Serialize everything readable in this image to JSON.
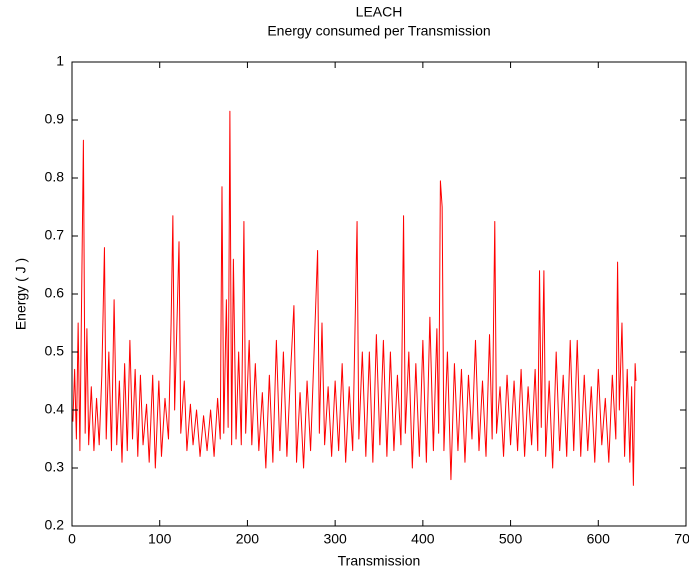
{
  "chart_data": {
    "type": "line",
    "title": "LEACH",
    "subtitle": "Energy consumed per Transmission",
    "xlabel": "Transmission",
    "ylabel": "Energy ( J )",
    "color": "#ff0000",
    "xlim": [
      0,
      700
    ],
    "xticks": [
      0,
      100,
      200,
      300,
      400,
      500,
      600,
      700
    ],
    "ylim": [
      0.2,
      1
    ],
    "yticks": [
      0.2,
      0.3,
      0.4,
      0.5,
      0.6,
      0.7,
      0.8,
      0.9,
      1
    ],
    "grid": false,
    "x": [
      1,
      3,
      5,
      7,
      9,
      11,
      13,
      15,
      17,
      19,
      22,
      25,
      28,
      31,
      34,
      37,
      39,
      42,
      45,
      48,
      51,
      54,
      57,
      60,
      63,
      66,
      69,
      72,
      75,
      78,
      81,
      85,
      88,
      92,
      95,
      99,
      102,
      106,
      110,
      113,
      115,
      117,
      120,
      122,
      124,
      128,
      131,
      135,
      138,
      142,
      146,
      150,
      154,
      158,
      162,
      166,
      169,
      171,
      173,
      176,
      178,
      180,
      182,
      184,
      187,
      190,
      193,
      196,
      198,
      202,
      205,
      209,
      213,
      217,
      221,
      225,
      229,
      233,
      237,
      241,
      245,
      249,
      253,
      256,
      260,
      264,
      268,
      272,
      276,
      280,
      282,
      285,
      288,
      292,
      296,
      300,
      304,
      308,
      312,
      316,
      320,
      325,
      327,
      331,
      335,
      339,
      343,
      347,
      351,
      355,
      359,
      363,
      367,
      371,
      375,
      378,
      380,
      384,
      388,
      392,
      396,
      400,
      404,
      408,
      412,
      416,
      418,
      420,
      422,
      424,
      428,
      432,
      436,
      440,
      444,
      448,
      452,
      456,
      460,
      464,
      468,
      472,
      476,
      479,
      482,
      484,
      488,
      492,
      496,
      500,
      504,
      508,
      512,
      516,
      520,
      524,
      528,
      531,
      533,
      535,
      538,
      540,
      544,
      548,
      552,
      556,
      560,
      564,
      568,
      572,
      576,
      580,
      584,
      588,
      592,
      596,
      600,
      604,
      608,
      612,
      616,
      620,
      622,
      624,
      627,
      630,
      633,
      636,
      638,
      640,
      642,
      643
    ],
    "values": [
      0.38,
      0.47,
      0.35,
      0.55,
      0.33,
      0.6,
      0.865,
      0.36,
      0.54,
      0.34,
      0.44,
      0.33,
      0.42,
      0.34,
      0.46,
      0.68,
      0.35,
      0.5,
      0.33,
      0.59,
      0.34,
      0.45,
      0.31,
      0.48,
      0.33,
      0.52,
      0.35,
      0.47,
      0.32,
      0.46,
      0.34,
      0.41,
      0.31,
      0.46,
      0.3,
      0.45,
      0.32,
      0.42,
      0.35,
      0.55,
      0.735,
      0.4,
      0.57,
      0.69,
      0.36,
      0.45,
      0.33,
      0.41,
      0.34,
      0.4,
      0.32,
      0.39,
      0.33,
      0.4,
      0.32,
      0.42,
      0.35,
      0.785,
      0.36,
      0.59,
      0.37,
      0.915,
      0.34,
      0.66,
      0.35,
      0.5,
      0.34,
      0.725,
      0.36,
      0.52,
      0.34,
      0.48,
      0.33,
      0.43,
      0.3,
      0.46,
      0.31,
      0.52,
      0.33,
      0.5,
      0.32,
      0.46,
      0.58,
      0.31,
      0.43,
      0.3,
      0.45,
      0.33,
      0.5,
      0.675,
      0.36,
      0.55,
      0.34,
      0.44,
      0.32,
      0.45,
      0.33,
      0.48,
      0.31,
      0.44,
      0.33,
      0.725,
      0.35,
      0.5,
      0.32,
      0.5,
      0.31,
      0.53,
      0.34,
      0.52,
      0.32,
      0.5,
      0.33,
      0.46,
      0.34,
      0.735,
      0.36,
      0.5,
      0.3,
      0.48,
      0.32,
      0.52,
      0.31,
      0.56,
      0.33,
      0.54,
      0.36,
      0.795,
      0.75,
      0.33,
      0.5,
      0.28,
      0.48,
      0.33,
      0.47,
      0.31,
      0.46,
      0.35,
      0.52,
      0.33,
      0.45,
      0.32,
      0.53,
      0.35,
      0.725,
      0.36,
      0.44,
      0.32,
      0.46,
      0.34,
      0.45,
      0.33,
      0.47,
      0.32,
      0.44,
      0.34,
      0.47,
      0.33,
      0.64,
      0.37,
      0.64,
      0.32,
      0.45,
      0.3,
      0.5,
      0.33,
      0.46,
      0.32,
      0.52,
      0.33,
      0.52,
      0.32,
      0.46,
      0.33,
      0.44,
      0.31,
      0.47,
      0.34,
      0.42,
      0.31,
      0.46,
      0.35,
      0.655,
      0.4,
      0.55,
      0.32,
      0.47,
      0.31,
      0.44,
      0.27,
      0.48,
      0.45
    ]
  }
}
